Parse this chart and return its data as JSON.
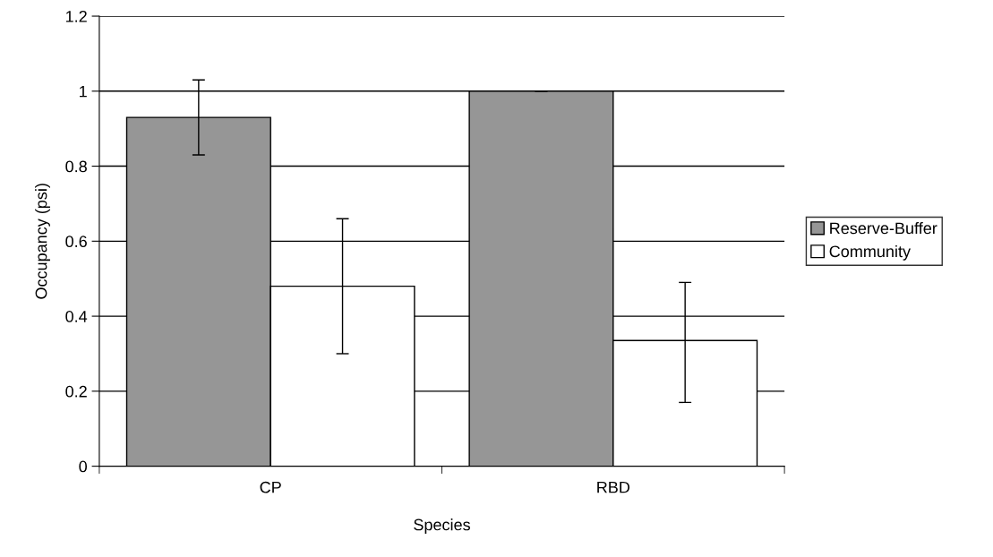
{
  "chart_data": {
    "type": "bar",
    "xlabel": "Species",
    "ylabel": "Occupancy (psi)",
    "categories": [
      "CP",
      "RBD"
    ],
    "series": [
      {
        "name": "Reserve-Buffer",
        "color": "#969696",
        "values": [
          0.93,
          1.0
        ],
        "errors": [
          [
            0.83,
            1.03
          ],
          0
        ]
      },
      {
        "name": "Community",
        "color": "#ffffff",
        "values": [
          0.48,
          0.335
        ],
        "errors": [
          [
            0.3,
            0.66
          ],
          [
            0.17,
            0.49
          ]
        ]
      }
    ],
    "ylim": [
      0,
      1.2
    ],
    "yticks": [
      0,
      0.2,
      0.4,
      0.6,
      0.8,
      1,
      1.2
    ],
    "grid": "y",
    "legend": "right"
  }
}
